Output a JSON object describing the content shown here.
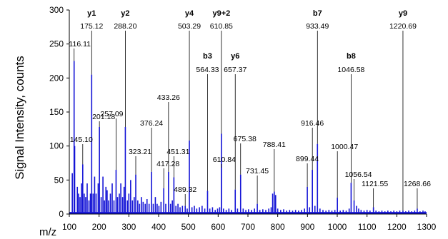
{
  "chart_data": {
    "type": "bar",
    "ylabel": "Signal Intensity, counts",
    "xlabel": "m/z",
    "xlim": [
      100,
      1300
    ],
    "ylim": [
      0,
      300
    ],
    "x_ticks": [
      100,
      200,
      300,
      400,
      500,
      600,
      700,
      800,
      900,
      1000,
      1100,
      1200,
      1300
    ],
    "y_ticks": [
      0,
      50,
      100,
      150,
      200,
      250,
      300
    ],
    "grid": false,
    "bar_color": "#1515d6",
    "annotations": [
      {
        "ion": "",
        "label": "116.11",
        "x": 116.11,
        "y": 225
      },
      {
        "ion": "y1",
        "label": "175.12",
        "x": 175.12,
        "y": 205
      },
      {
        "ion": "y2",
        "label": "288.20",
        "x": 288.2,
        "y": 128
      },
      {
        "ion": "y4",
        "label": "503.29",
        "x": 503.29,
        "y": 108
      },
      {
        "ion": "y9+2",
        "label": "610.85",
        "x": 610.85,
        "y": 118
      },
      {
        "ion": "b7",
        "label": "933.49",
        "x": 933.49,
        "y": 103
      },
      {
        "ion": "y9",
        "label": "1220.69",
        "x": 1220.69,
        "y": 5
      },
      {
        "ion": "b3",
        "label": "564.33",
        "x": 564.33,
        "y": 34
      },
      {
        "ion": "y6",
        "label": "657.37",
        "x": 657.37,
        "y": 36
      },
      {
        "ion": "b8",
        "label": "1046.58",
        "x": 1046.58,
        "y": 46
      },
      {
        "ion": "",
        "label": "201.18",
        "x": 201.18,
        "y": 128
      },
      {
        "ion": "",
        "label": "433.26",
        "x": 433.26,
        "y": 62
      },
      {
        "ion": "",
        "label": "257.09",
        "x": 257.09,
        "y": 65
      },
      {
        "ion": "",
        "label": "376.24",
        "x": 376.24,
        "y": 62
      },
      {
        "ion": "",
        "label": "916.46",
        "x": 916.46,
        "y": 65
      },
      {
        "ion": "",
        "label": "145.10",
        "x": 145.1,
        "y": 73
      },
      {
        "ion": "",
        "label": "323.21",
        "x": 323.21,
        "y": 58
      },
      {
        "ion": "",
        "label": "675.38",
        "x": 675.38,
        "y": 58
      },
      {
        "ion": "",
        "label": "1000.47",
        "x": 1000.47,
        "y": 24
      },
      {
        "ion": "",
        "label": "451.31",
        "x": 451.31,
        "y": 54
      },
      {
        "ion": "",
        "label": "610.84",
        "x": 610.84,
        "y": 68
      },
      {
        "ion": "",
        "label": "788.41",
        "x": 788.41,
        "y": 33
      },
      {
        "ion": "",
        "label": "417.28",
        "x": 417.28,
        "y": 38
      },
      {
        "ion": "",
        "label": "899.44",
        "x": 899.44,
        "y": 40
      },
      {
        "ion": "",
        "label": "731.45",
        "x": 731.45,
        "y": 15
      },
      {
        "ion": "",
        "label": "1056.54",
        "x": 1056.54,
        "y": 20
      },
      {
        "ion": "",
        "label": "489.32",
        "x": 489.32,
        "y": 12
      },
      {
        "ion": "",
        "label": "1121.55",
        "x": 1121.55,
        "y": 10
      },
      {
        "ion": "",
        "label": "1268.66",
        "x": 1268.66,
        "y": 8
      }
    ],
    "peaks": [
      {
        "x": 110,
        "y": 60
      },
      {
        "x": 116.11,
        "y": 225
      },
      {
        "x": 118,
        "y": 100
      },
      {
        "x": 127,
        "y": 40
      },
      {
        "x": 131,
        "y": 30
      },
      {
        "x": 136,
        "y": 25
      },
      {
        "x": 141,
        "y": 45
      },
      {
        "x": 145.1,
        "y": 73
      },
      {
        "x": 150,
        "y": 30
      },
      {
        "x": 155,
        "y": 25
      },
      {
        "x": 160,
        "y": 45
      },
      {
        "x": 166,
        "y": 20
      },
      {
        "x": 171,
        "y": 30
      },
      {
        "x": 175.12,
        "y": 205
      },
      {
        "x": 180,
        "y": 30
      },
      {
        "x": 185,
        "y": 55
      },
      {
        "x": 190,
        "y": 30
      },
      {
        "x": 197,
        "y": 45
      },
      {
        "x": 201.18,
        "y": 128
      },
      {
        "x": 207,
        "y": 25
      },
      {
        "x": 213,
        "y": 55
      },
      {
        "x": 218,
        "y": 20
      },
      {
        "x": 223,
        "y": 40
      },
      {
        "x": 227,
        "y": 35
      },
      {
        "x": 232,
        "y": 20
      },
      {
        "x": 238,
        "y": 30
      },
      {
        "x": 244,
        "y": 45
      },
      {
        "x": 250,
        "y": 20
      },
      {
        "x": 257.09,
        "y": 65
      },
      {
        "x": 262,
        "y": 25
      },
      {
        "x": 268,
        "y": 30
      },
      {
        "x": 273,
        "y": 45
      },
      {
        "x": 279,
        "y": 25
      },
      {
        "x": 284,
        "y": 40
      },
      {
        "x": 288.2,
        "y": 128
      },
      {
        "x": 295,
        "y": 20
      },
      {
        "x": 300,
        "y": 30
      },
      {
        "x": 306,
        "y": 50
      },
      {
        "x": 312,
        "y": 20
      },
      {
        "x": 318,
        "y": 25
      },
      {
        "x": 323.21,
        "y": 58
      },
      {
        "x": 330,
        "y": 20
      },
      {
        "x": 336,
        "y": 15
      },
      {
        "x": 342,
        "y": 25
      },
      {
        "x": 348,
        "y": 18
      },
      {
        "x": 355,
        "y": 15
      },
      {
        "x": 361,
        "y": 22
      },
      {
        "x": 368,
        "y": 15
      },
      {
        "x": 376.24,
        "y": 62
      },
      {
        "x": 382,
        "y": 15
      },
      {
        "x": 389,
        "y": 25
      },
      {
        "x": 395,
        "y": 15
      },
      {
        "x": 401,
        "y": 12
      },
      {
        "x": 408,
        "y": 18
      },
      {
        "x": 417.28,
        "y": 38
      },
      {
        "x": 424,
        "y": 15
      },
      {
        "x": 433.26,
        "y": 62
      },
      {
        "x": 440,
        "y": 15
      },
      {
        "x": 446,
        "y": 20
      },
      {
        "x": 451.31,
        "y": 54
      },
      {
        "x": 458,
        "y": 12
      },
      {
        "x": 465,
        "y": 15
      },
      {
        "x": 472,
        "y": 10
      },
      {
        "x": 480,
        "y": 12
      },
      {
        "x": 489.32,
        "y": 12
      },
      {
        "x": 496,
        "y": 8
      },
      {
        "x": 503.29,
        "y": 108
      },
      {
        "x": 512,
        "y": 10
      },
      {
        "x": 520,
        "y": 12
      },
      {
        "x": 528,
        "y": 8
      },
      {
        "x": 537,
        "y": 10
      },
      {
        "x": 546,
        "y": 12
      },
      {
        "x": 555,
        "y": 8
      },
      {
        "x": 564.33,
        "y": 34
      },
      {
        "x": 572,
        "y": 8
      },
      {
        "x": 581,
        "y": 10
      },
      {
        "x": 590,
        "y": 6
      },
      {
        "x": 598,
        "y": 8
      },
      {
        "x": 605,
        "y": 10
      },
      {
        "x": 610.84,
        "y": 68
      },
      {
        "x": 610.85,
        "y": 118
      },
      {
        "x": 618,
        "y": 8
      },
      {
        "x": 627,
        "y": 6
      },
      {
        "x": 636,
        "y": 8
      },
      {
        "x": 645,
        "y": 6
      },
      {
        "x": 657.37,
        "y": 36
      },
      {
        "x": 665,
        "y": 8
      },
      {
        "x": 675.38,
        "y": 58
      },
      {
        "x": 684,
        "y": 8
      },
      {
        "x": 693,
        "y": 6
      },
      {
        "x": 702,
        "y": 7
      },
      {
        "x": 712,
        "y": 6
      },
      {
        "x": 722,
        "y": 8
      },
      {
        "x": 731.45,
        "y": 15
      },
      {
        "x": 740,
        "y": 6
      },
      {
        "x": 750,
        "y": 7
      },
      {
        "x": 760,
        "y": 6
      },
      {
        "x": 770,
        "y": 8
      },
      {
        "x": 778,
        "y": 10
      },
      {
        "x": 783,
        "y": 30
      },
      {
        "x": 788.41,
        "y": 33
      },
      {
        "x": 793,
        "y": 28
      },
      {
        "x": 800,
        "y": 8
      },
      {
        "x": 810,
        "y": 6
      },
      {
        "x": 820,
        "y": 7
      },
      {
        "x": 830,
        "y": 5
      },
      {
        "x": 840,
        "y": 6
      },
      {
        "x": 850,
        "y": 5
      },
      {
        "x": 860,
        "y": 6
      },
      {
        "x": 870,
        "y": 5
      },
      {
        "x": 880,
        "y": 6
      },
      {
        "x": 890,
        "y": 8
      },
      {
        "x": 899.44,
        "y": 40
      },
      {
        "x": 907,
        "y": 10
      },
      {
        "x": 916.46,
        "y": 65
      },
      {
        "x": 925,
        "y": 12
      },
      {
        "x": 933.49,
        "y": 103
      },
      {
        "x": 942,
        "y": 8
      },
      {
        "x": 952,
        "y": 6
      },
      {
        "x": 962,
        "y": 5
      },
      {
        "x": 972,
        "y": 6
      },
      {
        "x": 982,
        "y": 5
      },
      {
        "x": 992,
        "y": 6
      },
      {
        "x": 1000.47,
        "y": 24
      },
      {
        "x": 1010,
        "y": 5
      },
      {
        "x": 1020,
        "y": 6
      },
      {
        "x": 1030,
        "y": 5
      },
      {
        "x": 1040,
        "y": 8
      },
      {
        "x": 1046.58,
        "y": 46
      },
      {
        "x": 1056.54,
        "y": 20
      },
      {
        "x": 1065,
        "y": 12
      },
      {
        "x": 1072,
        "y": 8
      },
      {
        "x": 1080,
        "y": 6
      },
      {
        "x": 1090,
        "y": 5
      },
      {
        "x": 1100,
        "y": 6
      },
      {
        "x": 1110,
        "y": 5
      },
      {
        "x": 1121.55,
        "y": 10
      },
      {
        "x": 1130,
        "y": 5
      },
      {
        "x": 1140,
        "y": 4
      },
      {
        "x": 1150,
        "y": 5
      },
      {
        "x": 1160,
        "y": 4
      },
      {
        "x": 1170,
        "y": 5
      },
      {
        "x": 1180,
        "y": 4
      },
      {
        "x": 1190,
        "y": 5
      },
      {
        "x": 1200,
        "y": 4
      },
      {
        "x": 1210,
        "y": 5
      },
      {
        "x": 1220.69,
        "y": 5
      },
      {
        "x": 1230,
        "y": 4
      },
      {
        "x": 1240,
        "y": 5
      },
      {
        "x": 1250,
        "y": 4
      },
      {
        "x": 1260,
        "y": 5
      },
      {
        "x": 1268.66,
        "y": 8
      },
      {
        "x": 1278,
        "y": 4
      },
      {
        "x": 1288,
        "y": 5
      },
      {
        "x": 1295,
        "y": 4
      }
    ]
  }
}
